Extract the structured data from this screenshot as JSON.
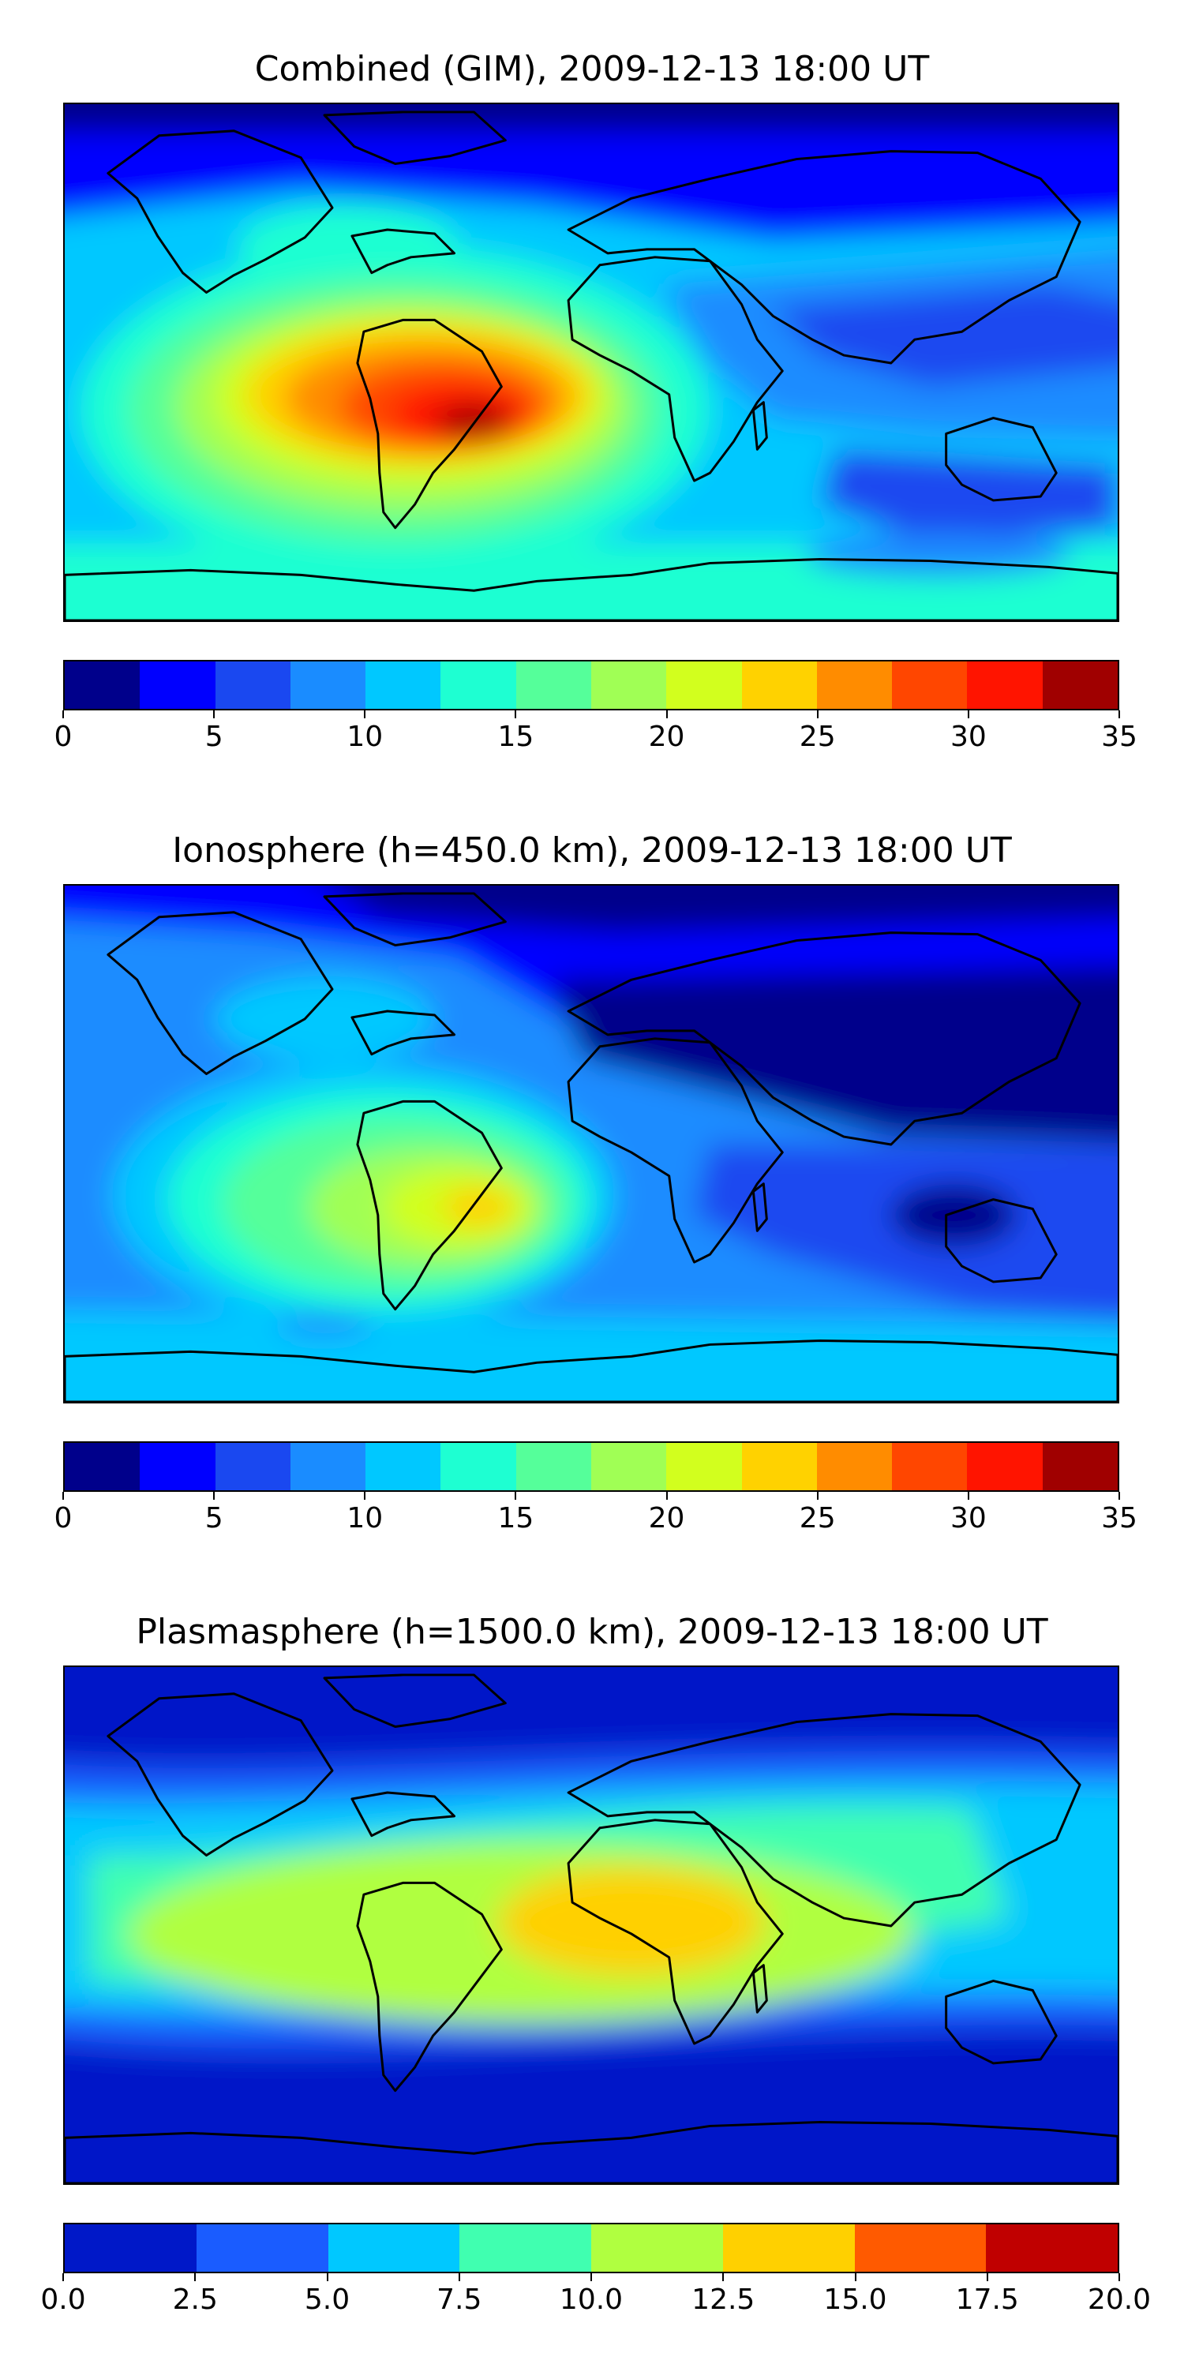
{
  "panels": [
    {
      "title": "Combined (GIM), 2009-12-13 18:00 UT",
      "colorbar": {
        "colors": [
          "#00008b",
          "#0000ff",
          "#1a48f0",
          "#1a8cff",
          "#00c8ff",
          "#1effd2",
          "#55ff9a",
          "#a0ff55",
          "#d2ff1e",
          "#ffd200",
          "#ff8c00",
          "#ff4600",
          "#ff1400",
          "#a00000"
        ],
        "ticks": [
          "0",
          "5",
          "10",
          "15",
          "20",
          "25",
          "30",
          "35"
        ]
      }
    },
    {
      "title": "Ionosphere  (h=450.0 km), 2009-12-13 18:00 UT",
      "colorbar": {
        "colors": [
          "#00008b",
          "#0000ff",
          "#1a48f0",
          "#1a8cff",
          "#00c8ff",
          "#1effd2",
          "#55ff9a",
          "#a0ff55",
          "#d2ff1e",
          "#ffd200",
          "#ff8c00",
          "#ff4600",
          "#ff1400",
          "#a00000"
        ],
        "ticks": [
          "0",
          "5",
          "10",
          "15",
          "20",
          "25",
          "30",
          "35"
        ]
      }
    },
    {
      "title": "Plasmasphere (h=1500.0 km), 2009-12-13 18:00 UT",
      "colorbar": {
        "colors": [
          "#0018c8",
          "#1a5cff",
          "#00c8ff",
          "#40ffb0",
          "#b0ff40",
          "#ffd000",
          "#ff5a00",
          "#c00000"
        ],
        "ticks": [
          "0.0",
          "2.5",
          "5.0",
          "7.5",
          "10.0",
          "12.5",
          "15.0",
          "17.5",
          "20.0"
        ]
      }
    }
  ]
}
